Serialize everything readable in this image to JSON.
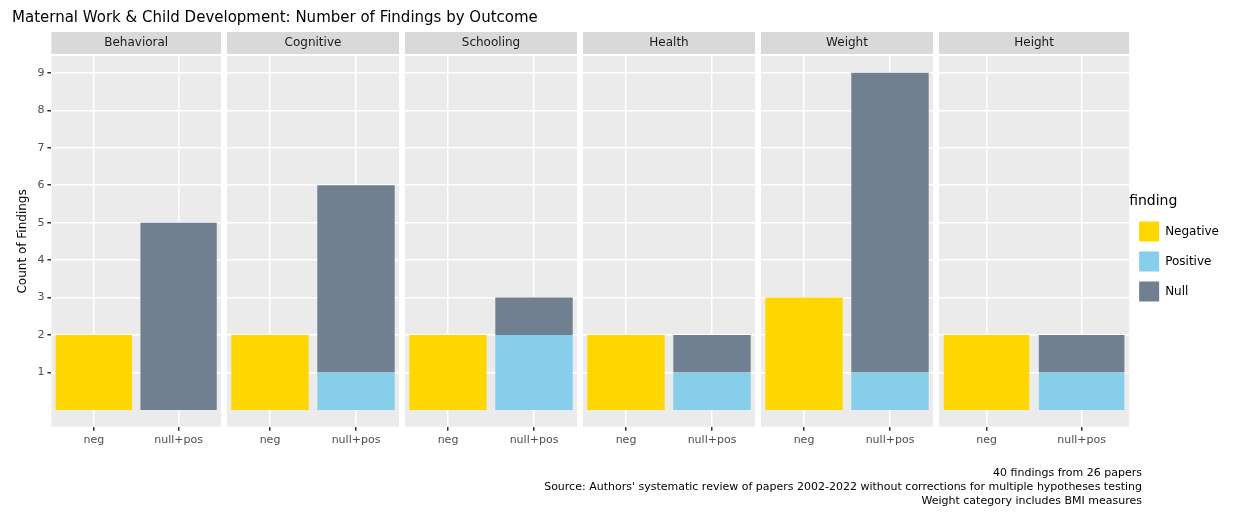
{
  "chart_data": [
    {
      "type": "other",
      "title": "Maternal Work & Child Development: Number of Findings by Outcome",
      "annotations": [
        "40 findings from 26 papers",
        "Source: Authors' systematic review of papers 2002-2022 without corrections for multiple hypotheses testing",
        "Weight category includes BMI measures"
      ]
    },
    {
      "type": "bar",
      "title": "Behavioral",
      "ylabel": "Count of Findings",
      "categories": [
        "neg",
        "null+pos"
      ],
      "stacked": true,
      "ylim": [
        -0.45,
        9.45
      ],
      "yticks": [
        1,
        2,
        3,
        4,
        5,
        6,
        7,
        8,
        9
      ],
      "grid": true,
      "legend": false,
      "series": [
        {
          "color": "#ffd700",
          "values": [
            2,
            null
          ]
        },
        {
          "color": "#87ceeb",
          "values": [
            null,
            null
          ]
        },
        {
          "color": "#708090",
          "values": [
            null,
            5
          ]
        }
      ]
    },
    {
      "type": "bar",
      "title": "Cognitive",
      "categories": [
        "neg",
        "null+pos"
      ],
      "stacked": true,
      "ylim": [
        -0.45,
        9.45
      ],
      "yticks": [
        1,
        2,
        3,
        4,
        5,
        6,
        7,
        8,
        9
      ],
      "grid": true,
      "legend": false,
      "tick_labels": "x",
      "series": [
        {
          "color": "#ffd700",
          "values": [
            2,
            null
          ]
        },
        {
          "color": "#87ceeb",
          "values": [
            null,
            1
          ]
        },
        {
          "color": "#708090",
          "values": [
            null,
            5
          ]
        }
      ]
    },
    {
      "type": "bar",
      "title": "Schooling",
      "categories": [
        "neg",
        "null+pos"
      ],
      "stacked": true,
      "ylim": [
        -0.45,
        9.45
      ],
      "yticks": [
        1,
        2,
        3,
        4,
        5,
        6,
        7,
        8,
        9
      ],
      "grid": true,
      "legend": false,
      "tick_labels": "x",
      "series": [
        {
          "color": "#ffd700",
          "values": [
            2,
            null
          ]
        },
        {
          "color": "#87ceeb",
          "values": [
            null,
            2
          ]
        },
        {
          "color": "#708090",
          "values": [
            null,
            1
          ]
        }
      ]
    },
    {
      "type": "bar",
      "title": "Health",
      "categories": [
        "neg",
        "null+pos"
      ],
      "stacked": true,
      "ylim": [
        -0.45,
        9.45
      ],
      "yticks": [
        1,
        2,
        3,
        4,
        5,
        6,
        7,
        8,
        9
      ],
      "grid": true,
      "legend": false,
      "tick_labels": "x",
      "series": [
        {
          "color": "#ffd700",
          "values": [
            2,
            null
          ]
        },
        {
          "color": "#87ceeb",
          "values": [
            null,
            1
          ]
        },
        {
          "color": "#708090",
          "values": [
            null,
            1
          ]
        }
      ]
    },
    {
      "type": "bar",
      "title": "Weight",
      "categories": [
        "neg",
        "null+pos"
      ],
      "stacked": true,
      "ylim": [
        -0.45,
        9.45
      ],
      "yticks": [
        1,
        2,
        3,
        4,
        5,
        6,
        7,
        8,
        9
      ],
      "grid": true,
      "legend": false,
      "tick_labels": "x",
      "series": [
        {
          "color": "#ffd700",
          "values": [
            3,
            null
          ]
        },
        {
          "color": "#87ceeb",
          "values": [
            null,
            1
          ]
        },
        {
          "color": "#708090",
          "values": [
            null,
            8
          ]
        }
      ]
    },
    {
      "type": "bar",
      "title": "Height",
      "categories": [
        "neg",
        "null+pos"
      ],
      "stacked": true,
      "ylim": [
        -0.45,
        9.45
      ],
      "yticks": [
        1,
        2,
        3,
        4,
        5,
        6,
        7,
        8,
        9
      ],
      "grid": true,
      "legend": "right",
      "legend_title": "finding",
      "tick_labels": "x",
      "series": [
        {
          "name": "Negative",
          "color": "#ffd700",
          "values": [
            2,
            null
          ]
        },
        {
          "name": "Positive",
          "color": "#87ceeb",
          "values": [
            null,
            1
          ]
        },
        {
          "name": "Null",
          "color": "#708090",
          "values": [
            null,
            1
          ]
        }
      ]
    }
  ]
}
